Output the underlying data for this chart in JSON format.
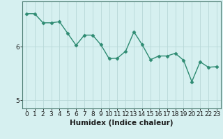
{
  "x": [
    0,
    1,
    2,
    3,
    4,
    5,
    6,
    7,
    8,
    9,
    10,
    11,
    12,
    13,
    14,
    15,
    16,
    17,
    18,
    19,
    20,
    21,
    22,
    23
  ],
  "y": [
    6.62,
    6.62,
    6.45,
    6.45,
    6.47,
    6.25,
    6.03,
    6.22,
    6.22,
    6.04,
    5.78,
    5.79,
    5.92,
    6.28,
    6.04,
    5.76,
    5.83,
    5.83,
    5.88,
    5.75,
    5.35,
    5.72,
    5.62,
    5.63
  ],
  "line_color": "#2e8b72",
  "marker": "D",
  "marker_size": 2.5,
  "bg_color": "#d6f0f0",
  "grid_color": "#b8d8d8",
  "xlabel": "Humidex (Indice chaleur)",
  "xlim": [
    -0.5,
    23.5
  ],
  "ylim": [
    4.85,
    6.85
  ],
  "yticks": [
    5,
    6
  ],
  "ytick_labels": [
    "5",
    "6"
  ],
  "xticks": [
    0,
    1,
    2,
    3,
    4,
    5,
    6,
    7,
    8,
    9,
    10,
    11,
    12,
    13,
    14,
    15,
    16,
    17,
    18,
    19,
    20,
    21,
    22,
    23
  ],
  "xlabel_fontsize": 7.5,
  "tick_fontsize": 6.5,
  "line_width": 1.0
}
